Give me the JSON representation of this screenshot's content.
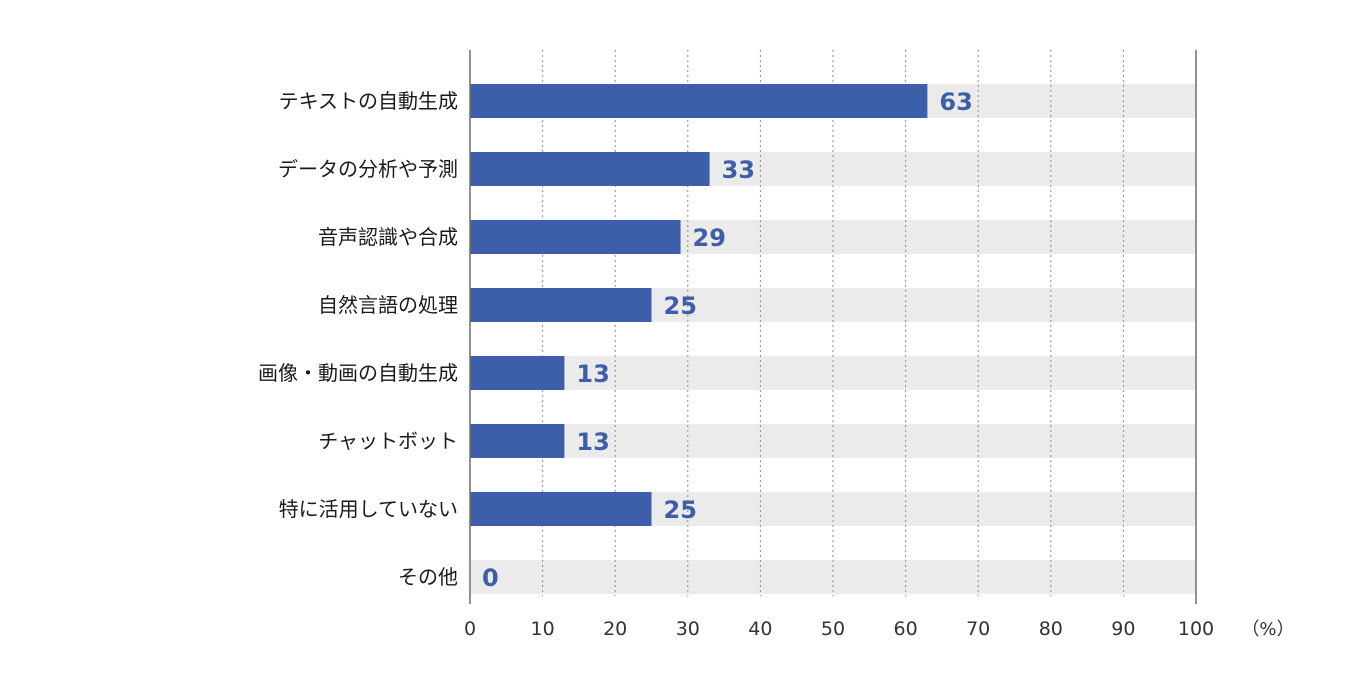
{
  "chart_data": {
    "type": "bar",
    "orientation": "horizontal",
    "categories": [
      "テキストの自動生成",
      "データの分析や予測",
      "音声認識や合成",
      "自然言語の処理",
      "画像・動画の自動生成",
      "チャットボット",
      "特に活用していない",
      "その他"
    ],
    "values": [
      63,
      33,
      29,
      25,
      13,
      13,
      25,
      0
    ],
    "xlim": [
      0,
      100
    ],
    "x_ticks": [
      0,
      10,
      20,
      30,
      40,
      50,
      60,
      70,
      80,
      90,
      100
    ],
    "x_unit": "（%）",
    "grid": "vertical dotted",
    "colors": {
      "bar": "#3d5ea8",
      "track": "#ebebeb",
      "value_text": "#3d5ea8"
    }
  }
}
